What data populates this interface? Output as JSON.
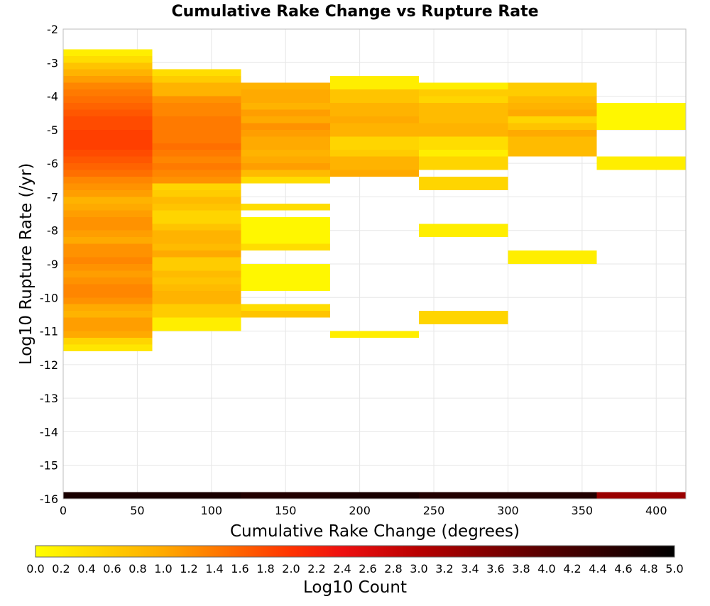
{
  "chart_data": {
    "type": "heatmap",
    "title": "Cumulative Rake Change vs Rupture Rate",
    "xlabel": "Cumulative Rake Change (degrees)",
    "ylabel": "Log10 Rupture Rate (/yr)",
    "xlim": [
      0,
      420
    ],
    "ylim": [
      -16,
      -2
    ],
    "x_ticks": [
      "0",
      "50",
      "100",
      "150",
      "200",
      "250",
      "300",
      "350",
      "400"
    ],
    "y_ticks": [
      "-2",
      "-3",
      "-4",
      "-5",
      "-6",
      "-7",
      "-8",
      "-9",
      "-10",
      "-11",
      "-12",
      "-13",
      "-14",
      "-15",
      "-16"
    ],
    "grid": true,
    "x_bin_width": 60,
    "y_bin_height": 0.2,
    "x_bin_starts": [
      0,
      60,
      120,
      180,
      240,
      300,
      360
    ],
    "cells": [
      [
        0,
        -2.8,
        0.2
      ],
      [
        0,
        -3.0,
        0.4
      ],
      [
        0,
        -3.2,
        0.7
      ],
      [
        0,
        -3.4,
        0.9
      ],
      [
        0,
        -3.6,
        1.1
      ],
      [
        0,
        -3.8,
        1.3
      ],
      [
        0,
        -4.0,
        1.4
      ],
      [
        0,
        -4.2,
        1.5
      ],
      [
        0,
        -4.4,
        1.6
      ],
      [
        0,
        -4.6,
        1.7
      ],
      [
        0,
        -4.8,
        1.8
      ],
      [
        0,
        -5.0,
        1.8
      ],
      [
        0,
        -5.2,
        1.9
      ],
      [
        0,
        -5.4,
        1.9
      ],
      [
        0,
        -5.6,
        1.9
      ],
      [
        0,
        -5.8,
        1.8
      ],
      [
        0,
        -6.0,
        1.7
      ],
      [
        0,
        -6.2,
        1.6
      ],
      [
        0,
        -6.4,
        1.5
      ],
      [
        0,
        -6.6,
        1.3
      ],
      [
        0,
        -6.8,
        1.2
      ],
      [
        0,
        -7.0,
        1.1
      ],
      [
        0,
        -7.2,
        0.9
      ],
      [
        0,
        -7.4,
        1.0
      ],
      [
        0,
        -7.6,
        1.1
      ],
      [
        0,
        -7.8,
        1.2
      ],
      [
        0,
        -8.0,
        1.2
      ],
      [
        0,
        -8.2,
        1.1
      ],
      [
        0,
        -8.4,
        1.0
      ],
      [
        0,
        -8.6,
        1.2
      ],
      [
        0,
        -8.8,
        1.2
      ],
      [
        0,
        -9.0,
        1.3
      ],
      [
        0,
        -9.2,
        1.2
      ],
      [
        0,
        -9.4,
        1.1
      ],
      [
        0,
        -9.6,
        1.2
      ],
      [
        0,
        -9.8,
        1.3
      ],
      [
        0,
        -10.0,
        1.3
      ],
      [
        0,
        -10.2,
        1.2
      ],
      [
        0,
        -10.4,
        1.0
      ],
      [
        0,
        -10.6,
        0.9
      ],
      [
        0,
        -10.8,
        1.1
      ],
      [
        0,
        -11.0,
        1.1
      ],
      [
        0,
        -11.2,
        1.0
      ],
      [
        0,
        -11.4,
        0.5
      ],
      [
        0,
        -11.6,
        0.3
      ],
      [
        60,
        -3.4,
        0.4
      ],
      [
        60,
        -3.6,
        0.6
      ],
      [
        60,
        -3.8,
        0.9
      ],
      [
        60,
        -4.0,
        0.9
      ],
      [
        60,
        -4.2,
        1.2
      ],
      [
        60,
        -4.4,
        1.3
      ],
      [
        60,
        -4.6,
        1.3
      ],
      [
        60,
        -4.8,
        1.4
      ],
      [
        60,
        -5.0,
        1.4
      ],
      [
        60,
        -5.2,
        1.4
      ],
      [
        60,
        -5.4,
        1.4
      ],
      [
        60,
        -5.6,
        1.5
      ],
      [
        60,
        -5.8,
        1.4
      ],
      [
        60,
        -6.0,
        1.3
      ],
      [
        60,
        -6.2,
        1.4
      ],
      [
        60,
        -6.4,
        1.3
      ],
      [
        60,
        -6.6,
        1.2
      ],
      [
        60,
        -6.8,
        0.5
      ],
      [
        60,
        -7.0,
        0.6
      ],
      [
        60,
        -7.2,
        0.8
      ],
      [
        60,
        -7.4,
        0.7
      ],
      [
        60,
        -7.6,
        0.5
      ],
      [
        60,
        -7.8,
        0.5
      ],
      [
        60,
        -8.0,
        0.7
      ],
      [
        60,
        -8.2,
        0.9
      ],
      [
        60,
        -8.4,
        0.9
      ],
      [
        60,
        -8.6,
        0.8
      ],
      [
        60,
        -8.8,
        1.0
      ],
      [
        60,
        -9.0,
        0.6
      ],
      [
        60,
        -9.2,
        0.6
      ],
      [
        60,
        -9.4,
        0.8
      ],
      [
        60,
        -9.6,
        0.7
      ],
      [
        60,
        -9.8,
        0.8
      ],
      [
        60,
        -10.0,
        0.9
      ],
      [
        60,
        -10.2,
        0.9
      ],
      [
        60,
        -10.4,
        0.6
      ],
      [
        60,
        -10.6,
        0.6
      ],
      [
        60,
        -10.8,
        0.2
      ],
      [
        60,
        -11.0,
        0.2
      ],
      [
        120,
        -3.8,
        0.9
      ],
      [
        120,
        -4.0,
        1.0
      ],
      [
        120,
        -4.2,
        1.0
      ],
      [
        120,
        -4.4,
        0.9
      ],
      [
        120,
        -4.6,
        1.1
      ],
      [
        120,
        -4.8,
        1.0
      ],
      [
        120,
        -5.0,
        1.2
      ],
      [
        120,
        -5.2,
        1.1
      ],
      [
        120,
        -5.4,
        1.0
      ],
      [
        120,
        -5.6,
        1.0
      ],
      [
        120,
        -5.8,
        0.9
      ],
      [
        120,
        -6.0,
        1.0
      ],
      [
        120,
        -6.2,
        1.1
      ],
      [
        120,
        -6.4,
        0.8
      ],
      [
        120,
        -6.6,
        0.4
      ],
      [
        120,
        -7.4,
        0.4
      ],
      [
        120,
        -7.8,
        0.1
      ],
      [
        120,
        -8.0,
        0.1
      ],
      [
        120,
        -8.2,
        0.1
      ],
      [
        120,
        -8.4,
        0.1
      ],
      [
        120,
        -8.6,
        0.4
      ],
      [
        120,
        -9.2,
        0.1
      ],
      [
        120,
        -9.4,
        0.1
      ],
      [
        120,
        -9.6,
        0.1
      ],
      [
        120,
        -9.8,
        0.1
      ],
      [
        120,
        -10.4,
        0.4
      ],
      [
        120,
        -10.6,
        0.7
      ],
      [
        180,
        -3.6,
        0.2
      ],
      [
        180,
        -3.8,
        0.2
      ],
      [
        180,
        -4.0,
        0.7
      ],
      [
        180,
        -4.2,
        0.7
      ],
      [
        180,
        -4.4,
        0.9
      ],
      [
        180,
        -4.6,
        0.9
      ],
      [
        180,
        -4.8,
        1.0
      ],
      [
        180,
        -5.0,
        0.9
      ],
      [
        180,
        -5.2,
        0.9
      ],
      [
        180,
        -5.4,
        0.5
      ],
      [
        180,
        -5.6,
        0.5
      ],
      [
        180,
        -5.8,
        0.6
      ],
      [
        180,
        -6.0,
        0.9
      ],
      [
        180,
        -6.2,
        0.9
      ],
      [
        180,
        -6.4,
        1.0
      ],
      [
        180,
        -11.2,
        0.2
      ],
      [
        240,
        -3.8,
        0.2
      ],
      [
        240,
        -4.0,
        0.6
      ],
      [
        240,
        -4.2,
        0.5
      ],
      [
        240,
        -4.4,
        0.8
      ],
      [
        240,
        -4.6,
        0.8
      ],
      [
        240,
        -4.8,
        0.8
      ],
      [
        240,
        -5.0,
        0.9
      ],
      [
        240,
        -5.2,
        0.9
      ],
      [
        240,
        -5.4,
        0.4
      ],
      [
        240,
        -5.6,
        0.4
      ],
      [
        240,
        -5.8,
        0.2
      ],
      [
        240,
        -6.0,
        0.5
      ],
      [
        240,
        -6.2,
        0.5
      ],
      [
        240,
        -6.6,
        0.5
      ],
      [
        240,
        -6.8,
        0.5
      ],
      [
        240,
        -8.0,
        0.2
      ],
      [
        240,
        -8.2,
        0.2
      ],
      [
        240,
        -10.6,
        0.5
      ],
      [
        240,
        -10.8,
        0.5
      ],
      [
        300,
        -3.8,
        0.6
      ],
      [
        300,
        -4.0,
        0.6
      ],
      [
        300,
        -4.2,
        0.8
      ],
      [
        300,
        -4.4,
        0.9
      ],
      [
        300,
        -4.6,
        1.0
      ],
      [
        300,
        -4.8,
        0.5
      ],
      [
        300,
        -5.0,
        0.7
      ],
      [
        300,
        -5.2,
        1.0
      ],
      [
        300,
        -5.4,
        0.8
      ],
      [
        300,
        -5.6,
        0.8
      ],
      [
        300,
        -5.8,
        0.8
      ],
      [
        300,
        -8.8,
        0.2
      ],
      [
        300,
        -9.0,
        0.2
      ],
      [
        360,
        -4.4,
        0.1
      ],
      [
        360,
        -4.6,
        0.1
      ],
      [
        360,
        -4.8,
        0.1
      ],
      [
        360,
        -5.0,
        0.1
      ],
      [
        360,
        -6.0,
        0.2
      ],
      [
        360,
        -6.2,
        0.2
      ],
      [
        0,
        -16.0,
        4.7
      ],
      [
        60,
        -16.0,
        4.7
      ],
      [
        120,
        -16.0,
        4.6
      ],
      [
        180,
        -16.0,
        4.7
      ],
      [
        240,
        -16.0,
        4.6
      ],
      [
        300,
        -16.0,
        4.6
      ],
      [
        360,
        -16.0,
        3.3
      ]
    ],
    "colorbar": {
      "label": "Log10 Count",
      "range": [
        0.0,
        5.0
      ],
      "ticks": [
        "0.0",
        "0.2",
        "0.4",
        "0.6",
        "0.8",
        "1.0",
        "1.2",
        "1.4",
        "1.6",
        "1.8",
        "2.0",
        "2.2",
        "2.4",
        "2.6",
        "2.8",
        "3.0",
        "3.2",
        "3.4",
        "3.6",
        "3.8",
        "4.0",
        "4.2",
        "4.4",
        "4.6",
        "4.8",
        "5.0"
      ],
      "colors": [
        [
          0.0,
          "#ffff00"
        ],
        [
          1.0,
          "#ffaa00"
        ],
        [
          2.0,
          "#ff3300"
        ],
        [
          2.4,
          "#ee1010"
        ],
        [
          3.0,
          "#b80000"
        ],
        [
          4.0,
          "#550000"
        ],
        [
          5.0,
          "#000000"
        ]
      ]
    }
  }
}
